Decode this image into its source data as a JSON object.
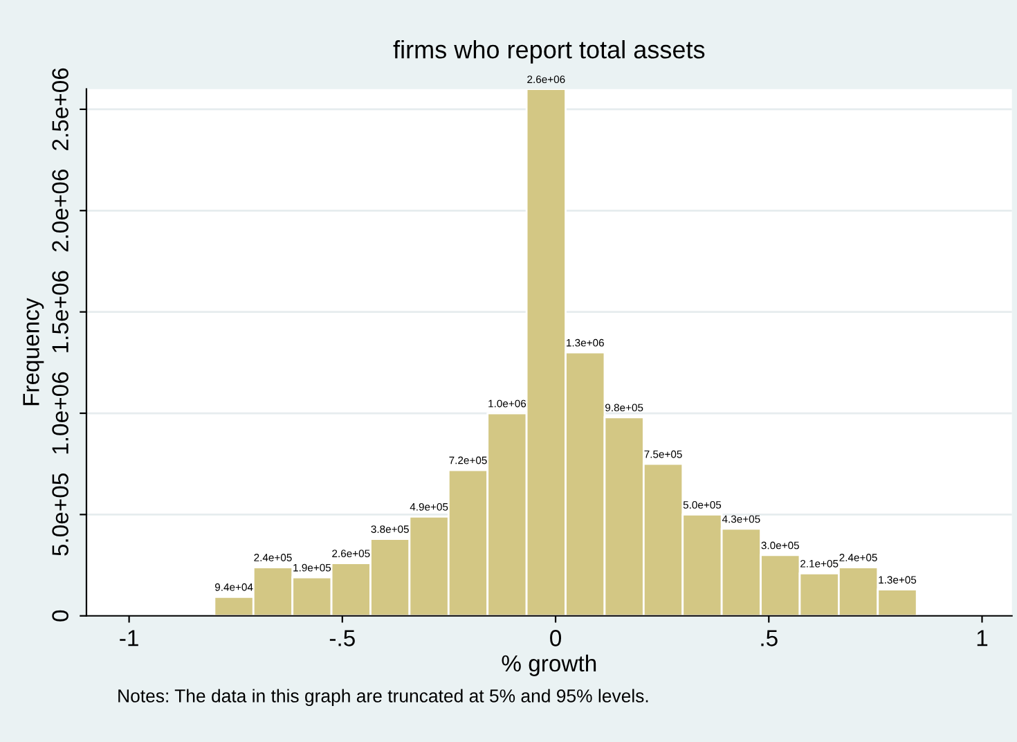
{
  "chart_data": {
    "type": "histogram",
    "title": "firms who report total assets",
    "xlabel": "% growth",
    "ylabel": "Frequency",
    "bins": [
      -0.8,
      -0.7085,
      -0.617,
      -0.5255,
      -0.434,
      -0.3425,
      -0.251,
      -0.1595,
      -0.068,
      0.0235,
      0.115,
      0.2065,
      0.298,
      0.3895,
      0.481,
      0.5725,
      0.664,
      0.7555,
      0.847
    ],
    "values": [
      94000,
      240000,
      190000,
      260000,
      380000,
      490000,
      720000,
      1000000,
      2600000,
      1300000,
      980000,
      750000,
      500000,
      430000,
      300000,
      210000,
      240000,
      130000
    ],
    "value_labels": [
      "9.4e+04",
      "2.4e+05",
      "1.9e+05",
      "2.6e+05",
      "3.8e+05",
      "4.9e+05",
      "7.2e+05",
      "1.0e+06",
      "2.6e+06",
      "1.3e+06",
      "9.8e+05",
      "7.5e+05",
      "5.0e+05",
      "4.3e+05",
      "3.0e+05",
      "2.1e+05",
      "2.4e+05",
      "1.3e+05"
    ],
    "color": "#d3c784",
    "xlim": [
      -1.1,
      1.07
    ],
    "xticks": [
      {
        "value": -1,
        "label": "-1"
      },
      {
        "value": -0.5,
        "label": "-.5"
      },
      0,
      {
        "value": 0.5,
        "label": ".5"
      },
      1
    ],
    "ylim": [
      0,
      2600000
    ],
    "yticks": [
      0,
      {
        "value": 500000,
        "label": "5.0e+05"
      },
      {
        "value": 1000000,
        "label": "1.0e+06"
      },
      {
        "value": 1500000,
        "label": "1.5e+06"
      },
      {
        "value": 2000000,
        "label": "2.0e+06"
      },
      {
        "value": 2500000,
        "label": "2.5e+06"
      }
    ],
    "grid": "y",
    "annotations": [
      "Notes: The data in this graph are truncated at 5% and 95% levels."
    ]
  }
}
